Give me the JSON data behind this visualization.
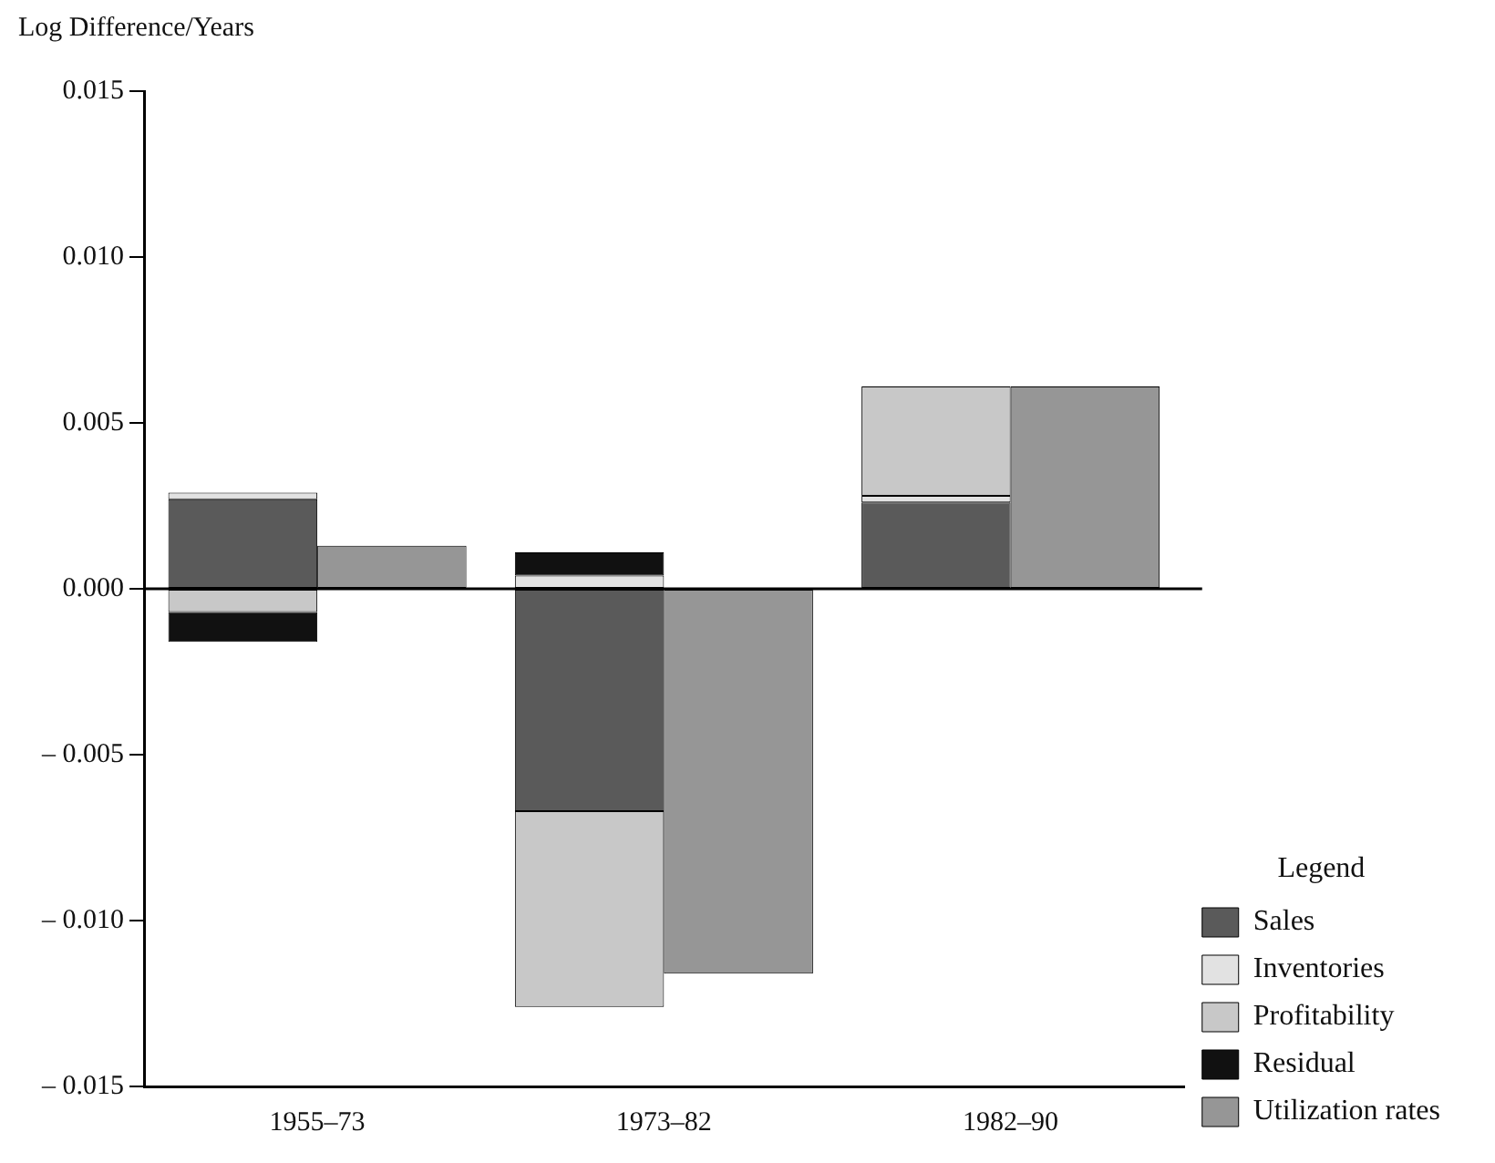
{
  "chart_data": {
    "type": "bar",
    "ylabel": "Log Difference/Years",
    "legend_title": "Legend",
    "legend": "right",
    "grid": false,
    "categories": [
      "1955–73",
      "1973–82",
      "1982–90"
    ],
    "series": [
      {
        "name": "Sales",
        "color": "#5a5a5a",
        "values": [
          0.0027,
          -0.0067,
          0.0026
        ],
        "base": [
          0,
          0,
          0
        ]
      },
      {
        "name": "Inventories",
        "color": "#e2e2e2",
        "values": [
          0.0002,
          0.0004,
          0.0002
        ],
        "base": [
          0.0027,
          0,
          0.0026
        ]
      },
      {
        "name": "Profitability",
        "color": "#c8c8c8",
        "values": [
          -0.0007,
          -0.0059,
          0.0033
        ],
        "base": [
          0,
          -0.0067,
          0.0028
        ]
      },
      {
        "name": "Residual",
        "color": "#111111",
        "values": [
          -0.0009,
          0.0007,
          null
        ],
        "base": [
          -0.0007,
          0.0004,
          null
        ]
      },
      {
        "name": "Utilization rates",
        "color": "#969696",
        "values": [
          0.0013,
          -0.0116,
          0.0061
        ]
      }
    ],
    "ylim": [
      -0.015,
      0.015
    ],
    "yticks": [
      {
        "value": -0.015,
        "label": "– 0.015"
      },
      {
        "value": -0.01,
        "label": "– 0.010"
      },
      {
        "value": -0.005,
        "label": "– 0.005"
      },
      {
        "value": 0,
        "label": "0.000"
      },
      {
        "value": 0.005,
        "label": "0.005"
      },
      {
        "value": 0.01,
        "label": "0.010"
      },
      {
        "value": 0.015,
        "label": "0.015"
      }
    ],
    "ref_lines": [
      {
        "axis": "y",
        "value": 0,
        "color": "#000000"
      }
    ]
  }
}
